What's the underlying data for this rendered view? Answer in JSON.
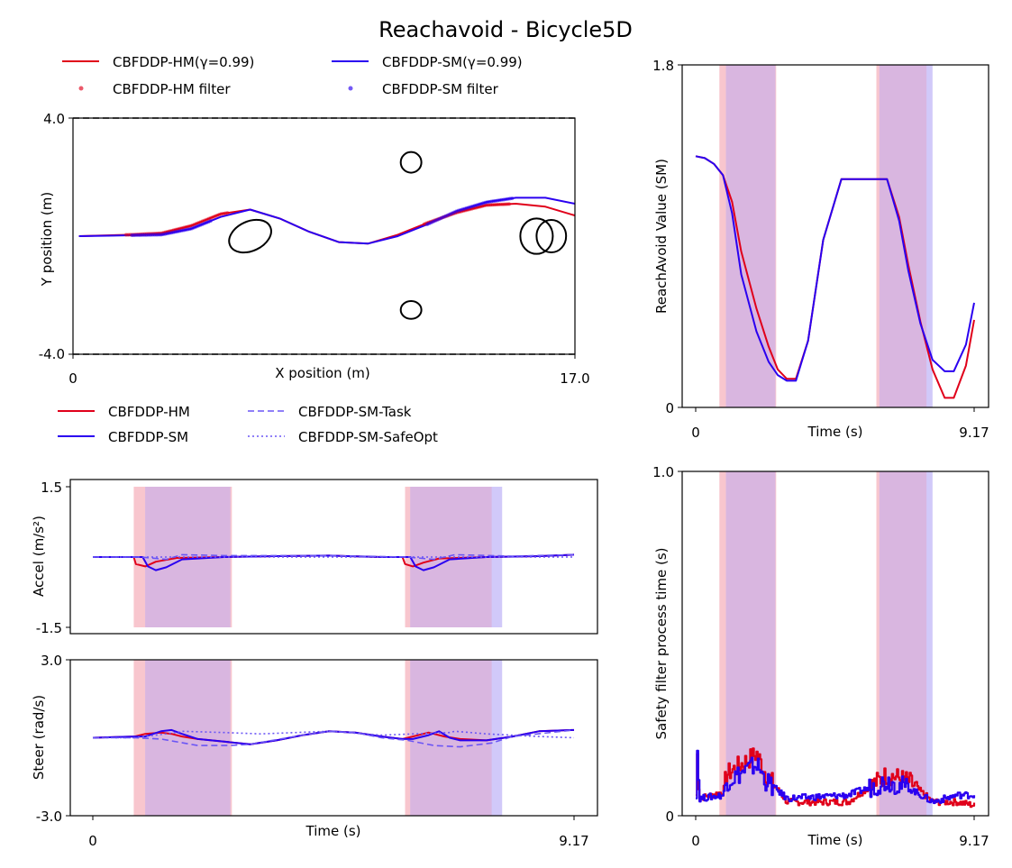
{
  "figure_title": "Reachavoid - Bicycle5D",
  "colors": {
    "hm": "#e0001a",
    "sm": "#2a00f0",
    "sm_light": "#6a55f5",
    "hm_band": "#f6b8c2",
    "sm_band": "#c6bcf8",
    "overlap_band": "#d9b6e0"
  },
  "chart_data": [
    {
      "id": "trajectory",
      "type": "line",
      "xlabel": "X position (m)",
      "ylabel": "Y position (m)",
      "xlim": [
        0,
        17.0
      ],
      "ylim": [
        -4.0,
        4.0
      ],
      "xtick_labels": [
        "0",
        "17.0"
      ],
      "ytick_labels": [
        "4.0",
        "-4.0"
      ],
      "boundaries": [
        4.0,
        -4.0
      ],
      "legend": [
        "CBFDDP-HM(γ=0.99)",
        "CBFDDP-HM filter",
        "CBFDDP-SM(γ=0.99)",
        "CBFDDP-SM filter"
      ],
      "series": [
        {
          "name": "CBFDDP-HM(γ=0.99)",
          "x": [
            0.2,
            2,
            3,
            4,
            5,
            6,
            7,
            8,
            9,
            10,
            11,
            12,
            13,
            14,
            15,
            16,
            17
          ],
          "y": [
            0.0,
            0.05,
            0.1,
            0.35,
            0.75,
            0.9,
            0.6,
            0.15,
            -0.2,
            -0.25,
            0.05,
            0.45,
            0.8,
            1.05,
            1.1,
            1.0,
            0.7
          ]
        },
        {
          "name": "CBFDDP-SM(γ=0.99)",
          "x": [
            0.2,
            2,
            3,
            4,
            5,
            6,
            7,
            8,
            9,
            10,
            11,
            12,
            13,
            14,
            15,
            16,
            17
          ],
          "y": [
            0.0,
            0.03,
            0.05,
            0.25,
            0.65,
            0.9,
            0.6,
            0.15,
            -0.2,
            -0.25,
            0.0,
            0.4,
            0.85,
            1.15,
            1.3,
            1.3,
            1.1
          ]
        }
      ],
      "filter_points": [
        {
          "name": "CBFDDP-HM filter",
          "x_range": [
            1.8,
            5.3
          ],
          "x_range_2": [
            11.9,
            14.8
          ]
        },
        {
          "name": "CBFDDP-SM filter",
          "x_range": [
            2.0,
            4.7
          ],
          "x_range_2": [
            12.0,
            14.9
          ]
        }
      ],
      "obstacles": [
        {
          "cx": 6.0,
          "cy": 0.0,
          "rx": 0.75,
          "ry": 0.5,
          "angle": -25
        },
        {
          "cx": 11.45,
          "cy": 2.5,
          "rx": 0.35,
          "ry": 0.35,
          "angle": 0
        },
        {
          "cx": 11.45,
          "cy": -2.5,
          "rx": 0.35,
          "ry": 0.3,
          "angle": 0
        },
        {
          "cx": 15.7,
          "cy": 0.0,
          "rx": 0.55,
          "ry": 0.6,
          "angle": 0
        },
        {
          "cx": 16.2,
          "cy": 0.0,
          "rx": 0.5,
          "ry": 0.55,
          "angle": 0
        }
      ]
    },
    {
      "id": "reachavoid",
      "type": "line",
      "xlabel": "Time (s)",
      "ylabel": "ReachAvoid Value (SM)",
      "xlim": [
        0,
        9.17
      ],
      "ylim": [
        0,
        1.8
      ],
      "xtick_labels": [
        "0",
        "9.17"
      ],
      "ytick_labels": [
        "1.8",
        "0"
      ],
      "series": [
        {
          "name": "CBFDDP-HM",
          "x": [
            0,
            0.3,
            0.6,
            0.9,
            1.2,
            1.5,
            2.0,
            2.4,
            2.7,
            3.0,
            3.3,
            3.7,
            4.2,
            4.8,
            5.0,
            5.2,
            5.5,
            5.9,
            6.3,
            6.7,
            7.0,
            7.4,
            7.8,
            8.2,
            8.5,
            8.9,
            9.17
          ],
          "y": [
            1.32,
            1.31,
            1.28,
            1.22,
            1.08,
            0.82,
            0.52,
            0.32,
            0.2,
            0.15,
            0.15,
            0.35,
            0.88,
            1.2,
            1.2,
            1.2,
            1.2,
            1.2,
            1.2,
            1.0,
            0.75,
            0.45,
            0.2,
            0.05,
            0.05,
            0.22,
            0.46
          ]
        },
        {
          "name": "CBFDDP-SM",
          "x": [
            0,
            0.3,
            0.6,
            0.9,
            1.2,
            1.5,
            2.0,
            2.4,
            2.7,
            3.0,
            3.3,
            3.7,
            4.2,
            4.8,
            5.0,
            5.2,
            5.5,
            5.9,
            6.3,
            6.7,
            7.0,
            7.4,
            7.8,
            8.2,
            8.5,
            8.9,
            9.17
          ],
          "y": [
            1.32,
            1.31,
            1.28,
            1.22,
            1.02,
            0.7,
            0.4,
            0.24,
            0.17,
            0.14,
            0.14,
            0.35,
            0.88,
            1.2,
            1.2,
            1.2,
            1.2,
            1.2,
            1.2,
            0.98,
            0.72,
            0.44,
            0.25,
            0.19,
            0.19,
            0.33,
            0.55
          ]
        }
      ]
    },
    {
      "id": "accel",
      "type": "line",
      "ylabel": "Accel (m/s²)",
      "xlim": [
        0,
        9.17
      ],
      "ylim": [
        -1.5,
        1.5
      ],
      "ytick_labels": [
        "1.5",
        "-1.5"
      ],
      "legend": [
        "CBFDDP-HM",
        "CBFDDP-SM",
        "CBFDDP-SM-Task",
        "CBFDDP-SM-SafeOpt"
      ],
      "series": [
        {
          "name": "CBFDDP-HM",
          "x": [
            0,
            0.78,
            0.82,
            1.0,
            1.2,
            1.6,
            2.5,
            3.5,
            4.5,
            5.5,
            5.9,
            5.95,
            6.1,
            6.3,
            6.6,
            7.5,
            8.5,
            9.17
          ],
          "y": [
            0.0,
            0.0,
            -0.15,
            -0.2,
            -0.1,
            -0.02,
            0.0,
            0.02,
            0.03,
            0.0,
            0.0,
            -0.15,
            -0.2,
            -0.12,
            -0.03,
            0.0,
            0.02,
            0.05
          ]
        },
        {
          "name": "CBFDDP-SM",
          "x": [
            0,
            0.95,
            1.05,
            1.2,
            1.4,
            1.7,
            2.5,
            3.5,
            4.5,
            5.5,
            6.05,
            6.15,
            6.3,
            6.5,
            6.8,
            7.5,
            8.5,
            9.17
          ],
          "y": [
            0.0,
            0.0,
            -0.2,
            -0.28,
            -0.22,
            -0.05,
            0.0,
            0.02,
            0.03,
            0.0,
            0.0,
            -0.2,
            -0.28,
            -0.22,
            -0.05,
            0.0,
            0.02,
            0.05
          ]
        },
        {
          "name": "CBFDDP-SM-Task",
          "x": [
            0,
            0.9,
            1.4,
            1.7,
            2.5,
            4.5,
            6.0,
            6.5,
            6.9,
            8.0,
            9.17
          ],
          "y": [
            0.0,
            0.0,
            -0.05,
            0.05,
            0.03,
            0.03,
            0.0,
            -0.05,
            0.05,
            0.02,
            0.05
          ]
        },
        {
          "name": "CBFDDP-SM-SafeOpt",
          "x": [
            0,
            9.17
          ],
          "y": [
            0.0,
            0.0
          ]
        }
      ]
    },
    {
      "id": "steer",
      "type": "line",
      "xlabel": "Time (s)",
      "ylabel": "Steer (rad/s)",
      "xlim": [
        0,
        9.17
      ],
      "ylim": [
        -3.0,
        3.0
      ],
      "xtick_labels": [
        "0",
        "9.17"
      ],
      "ytick_labels": [
        "3.0",
        "-3.0"
      ],
      "series": [
        {
          "name": "CBFDDP-HM",
          "x": [
            0,
            0.8,
            1.0,
            1.3,
            1.5,
            1.7,
            2.0,
            2.5,
            3.0,
            3.5,
            4.0,
            4.5,
            5.0,
            5.5,
            5.9,
            6.1,
            6.4,
            6.7,
            7.0,
            7.5,
            8.0,
            8.5,
            9.17
          ],
          "y": [
            0.0,
            0.05,
            0.15,
            0.2,
            0.15,
            0.05,
            -0.05,
            -0.15,
            -0.25,
            -0.1,
            0.1,
            0.25,
            0.2,
            0.05,
            -0.05,
            0.05,
            0.2,
            0.05,
            -0.05,
            -0.1,
            0.05,
            0.25,
            0.3
          ]
        },
        {
          "name": "CBFDDP-SM",
          "x": [
            0,
            0.8,
            1.0,
            1.3,
            1.5,
            1.7,
            2.0,
            2.5,
            3.0,
            3.5,
            4.0,
            4.5,
            5.0,
            5.5,
            5.9,
            6.1,
            6.4,
            6.6,
            6.8,
            7.0,
            7.5,
            8.0,
            8.5,
            9.17
          ],
          "y": [
            0.0,
            0.05,
            0.05,
            0.25,
            0.3,
            0.15,
            -0.05,
            -0.15,
            -0.25,
            -0.1,
            0.1,
            0.25,
            0.2,
            0.05,
            -0.05,
            -0.05,
            0.1,
            0.25,
            0.0,
            -0.1,
            -0.1,
            0.05,
            0.25,
            0.3
          ]
        },
        {
          "name": "CBFDDP-SM-Task",
          "x": [
            0,
            0.8,
            1.3,
            2.0,
            2.6,
            3.0,
            4.0,
            4.5,
            5.0,
            5.5,
            6.0,
            6.5,
            7.0,
            7.6,
            8.0,
            9.17
          ],
          "y": [
            0.0,
            0.0,
            -0.05,
            -0.3,
            -0.3,
            -0.25,
            0.1,
            0.25,
            0.2,
            0.0,
            -0.1,
            -0.3,
            -0.35,
            -0.2,
            0.05,
            0.3
          ]
        },
        {
          "name": "CBFDDP-SM-SafeOpt",
          "x": [
            0,
            0.8,
            1.6,
            1.7,
            2.5,
            3.2,
            4.5,
            5.5,
            6.8,
            6.9,
            7.5,
            8.5,
            9.17
          ],
          "y": [
            0.0,
            0.0,
            0.2,
            0.25,
            0.2,
            0.15,
            0.25,
            0.1,
            0.2,
            0.25,
            0.15,
            0.05,
            0.0
          ]
        }
      ]
    },
    {
      "id": "process_time",
      "type": "line",
      "xlabel": "Time (s)",
      "ylabel": "Safety filter process time (s)",
      "xlim": [
        0,
        9.17
      ],
      "ylim": [
        0,
        1.0
      ],
      "xtick_labels": [
        "0",
        "9.17"
      ],
      "ytick_labels": [
        "1.0",
        "0"
      ],
      "series": [
        {
          "name": "CBFDDP-HM",
          "x": [
            0,
            0.05,
            0.1,
            0.9,
            1.0,
            2.0,
            2.3,
            3.0,
            5.0,
            6.3,
            7.0,
            7.8,
            8.6,
            9.17
          ],
          "y": [
            0.06,
            0.2,
            0.05,
            0.07,
            0.12,
            0.18,
            0.12,
            0.04,
            0.04,
            0.12,
            0.1,
            0.04,
            0.04,
            0.03
          ]
        },
        {
          "name": "CBFDDP-SM",
          "x": [
            0,
            0.05,
            0.1,
            0.9,
            1.0,
            2.0,
            2.3,
            3.0,
            5.0,
            6.3,
            7.0,
            7.8,
            8.6,
            9.17
          ],
          "y": [
            0.06,
            0.22,
            0.05,
            0.06,
            0.1,
            0.15,
            0.1,
            0.05,
            0.06,
            0.1,
            0.08,
            0.04,
            0.06,
            0.06
          ]
        }
      ]
    }
  ],
  "filter_bands": {
    "hm": [
      [
        0.78,
        2.65
      ],
      [
        5.95,
        7.6
      ]
    ],
    "sm": [
      [
        1.0,
        2.62
      ],
      [
        6.05,
        7.8
      ]
    ]
  }
}
